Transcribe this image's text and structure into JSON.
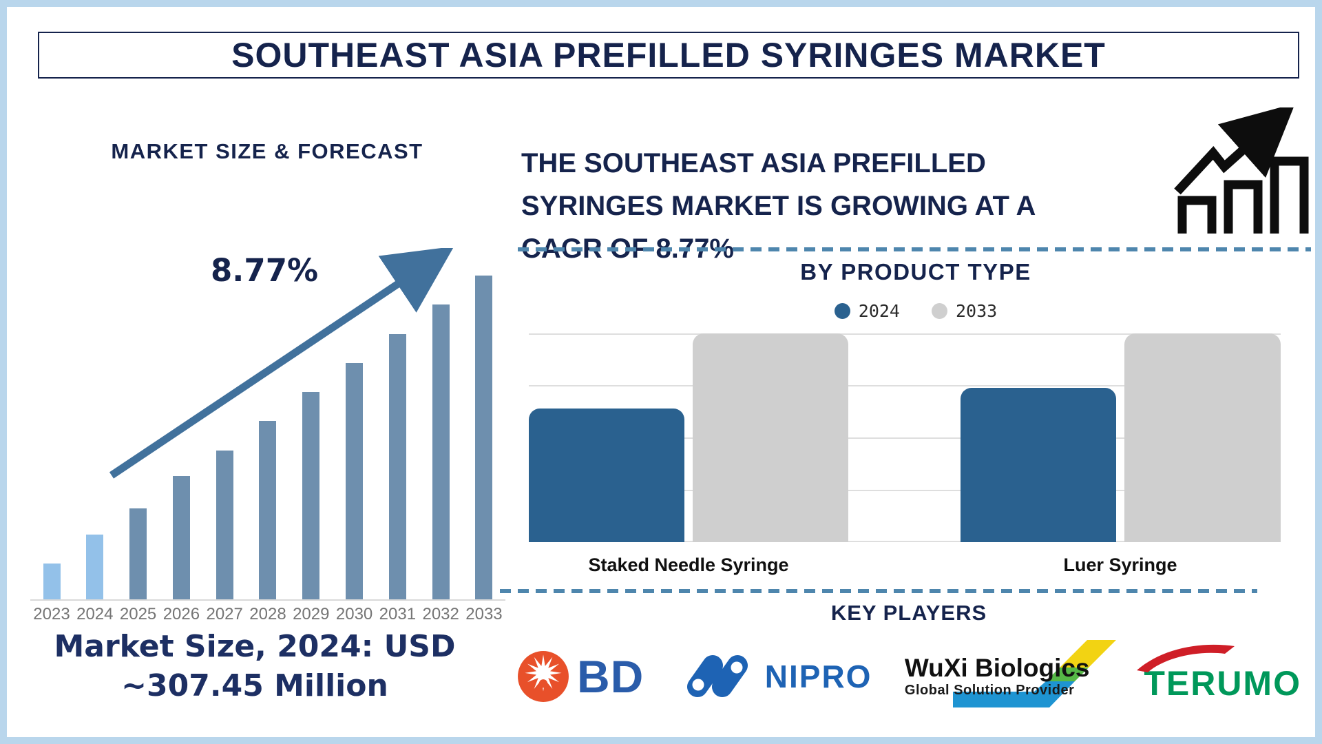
{
  "page": {
    "title": "SOUTHEAST ASIA PREFILLED SYRINGES MARKET"
  },
  "left": {
    "section_title": "MARKET SIZE & FORECAST",
    "cagr_label": "8.77%",
    "caption_line1": "Market Size, 2024: USD",
    "caption_line2": "~307.45 Million"
  },
  "right": {
    "statement_line1": "THE SOUTHEAST ASIA PREFILLED",
    "statement_line2": "SYRINGES MARKET IS GROWING AT A",
    "statement_line3": "CAGR OF 8.77%",
    "product_section_title": "BY PRODUCT TYPE",
    "key_players_title": "KEY PLAYERS"
  },
  "key_players": {
    "bd": "BD",
    "nipro": "NIPRO",
    "wuxi": "WuXi Biologics",
    "wuxi_tagline": "Global Solution Provider",
    "terumo": "TERUMO"
  },
  "chart_data": [
    {
      "type": "bar",
      "title": "MARKET SIZE & FORECAST",
      "categories": [
        "2023",
        "2024",
        "2025",
        "2026",
        "2027",
        "2028",
        "2029",
        "2030",
        "2031",
        "2032",
        "2033"
      ],
      "values_pct_of_max": [
        11,
        20,
        28,
        38,
        46,
        55,
        64,
        73,
        82,
        91,
        100
      ],
      "xlabel": "",
      "ylabel": "",
      "y_axis_shown": false,
      "grid": false,
      "annotations": [
        "8.77%",
        "Market Size, 2024: USD ~307.45 Million"
      ],
      "highlight": "bars 2023 and 2024 are light blue, 2025-2033 are steel blue, ascending trend arrow overlay"
    },
    {
      "type": "bar",
      "title": "BY PRODUCT TYPE",
      "categories": [
        "Staked Needle Syringe",
        "Luer Syringe"
      ],
      "series": [
        {
          "name": "2024",
          "values_pct_of_max": [
            64,
            74
          ],
          "color": "#2a618f"
        },
        {
          "name": "2033",
          "values_pct_of_max": [
            100,
            100
          ],
          "color": "#cfcfcf"
        }
      ],
      "legend_position": "top",
      "grid": true,
      "y_axis_shown": false
    }
  ],
  "colors": {
    "frame": "#b9d6ec",
    "navy": "#15234c",
    "bar_light": "#93c1e9",
    "bar_steel": "#6e8fae",
    "arrow": "#41719c",
    "right_blue": "#2a618f",
    "right_gray": "#cfcfcf",
    "gridline": "#dedede",
    "year_gray": "#757575",
    "bd_orange": "#e8502a",
    "bd_blue": "#2a5caa",
    "nipro_blue": "#1e63b4",
    "terumo_green": "#00985a",
    "terumo_red": "#cf1e27",
    "wuxi_yellow": "#f2d313",
    "wuxi_green": "#56b947",
    "wuxi_blue": "#1e94d2"
  }
}
